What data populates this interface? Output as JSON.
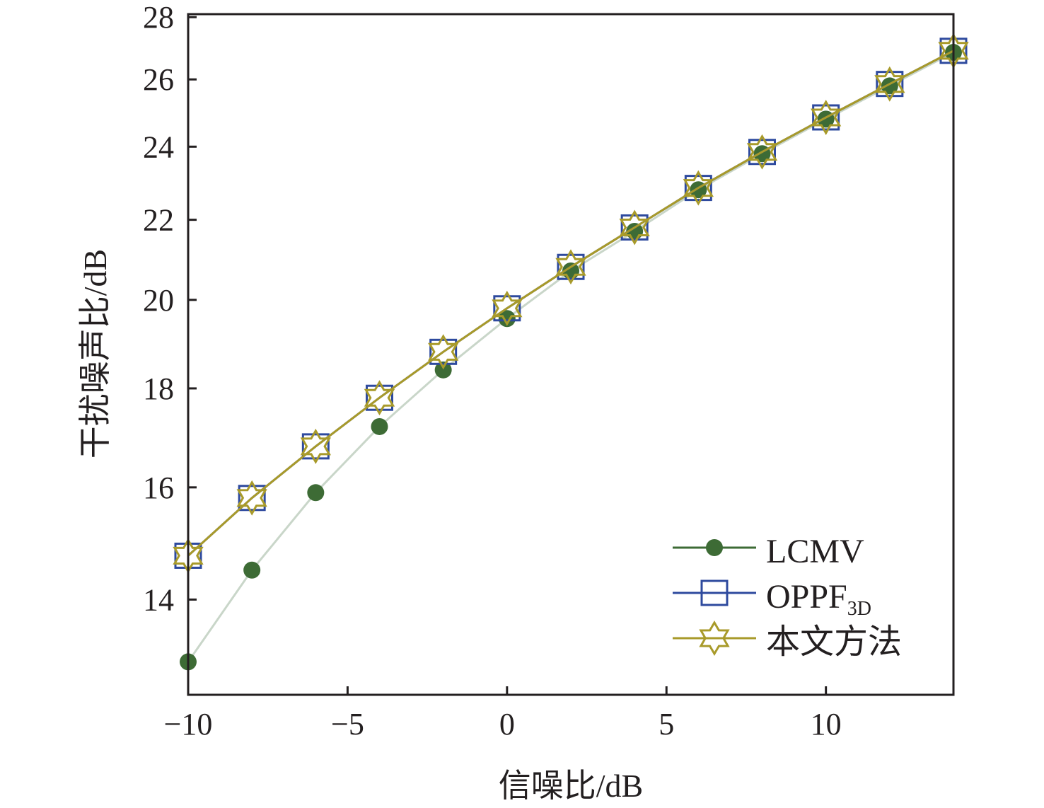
{
  "chart_data": {
    "type": "line",
    "title": "",
    "xlabel": "信噪比/dB",
    "ylabel": "干扰噪声比/dB",
    "xlim": [
      -10,
      14
    ],
    "ylim": [
      12.5,
      28.1
    ],
    "yscale": "log",
    "xticks": [
      -10,
      -5,
      0,
      5,
      10
    ],
    "xtick_labels": [
      "−10",
      "−5",
      "0",
      "5",
      "10"
    ],
    "yticks": [
      14,
      16,
      18,
      20,
      22,
      24,
      26,
      28
    ],
    "ytick_labels": [
      "14",
      "16",
      "18",
      "20",
      "22",
      "24",
      "26",
      "28"
    ],
    "grid": false,
    "legend_position": "bottom-right",
    "x": [
      -10,
      -8,
      -6,
      -4,
      -2,
      0,
      2,
      4,
      6,
      8,
      10,
      12,
      14
    ],
    "series": [
      {
        "name": "LCMV",
        "marker": "circle",
        "color": "#3d6b35",
        "line_color": "#c9d6c9",
        "values": [
          13.0,
          14.5,
          15.9,
          17.2,
          18.4,
          19.56,
          20.7,
          21.7,
          22.8,
          23.8,
          24.8,
          25.8,
          26.85
        ]
      },
      {
        "name": "OPPF",
        "name_sub": "3D",
        "marker": "square",
        "color": "#2e4a9e",
        "line_color": "#2e4a9e",
        "values": [
          14.75,
          15.8,
          16.8,
          17.8,
          18.8,
          19.8,
          20.8,
          21.8,
          22.85,
          23.85,
          24.85,
          25.86,
          26.9
        ]
      },
      {
        "name": "本文方法",
        "marker": "hexagram",
        "color": "#a89a2a",
        "line_color": "#a89a2a",
        "values": [
          14.75,
          15.8,
          16.8,
          17.8,
          18.8,
          19.8,
          20.8,
          21.8,
          22.85,
          23.85,
          24.85,
          25.86,
          26.9
        ]
      }
    ]
  }
}
